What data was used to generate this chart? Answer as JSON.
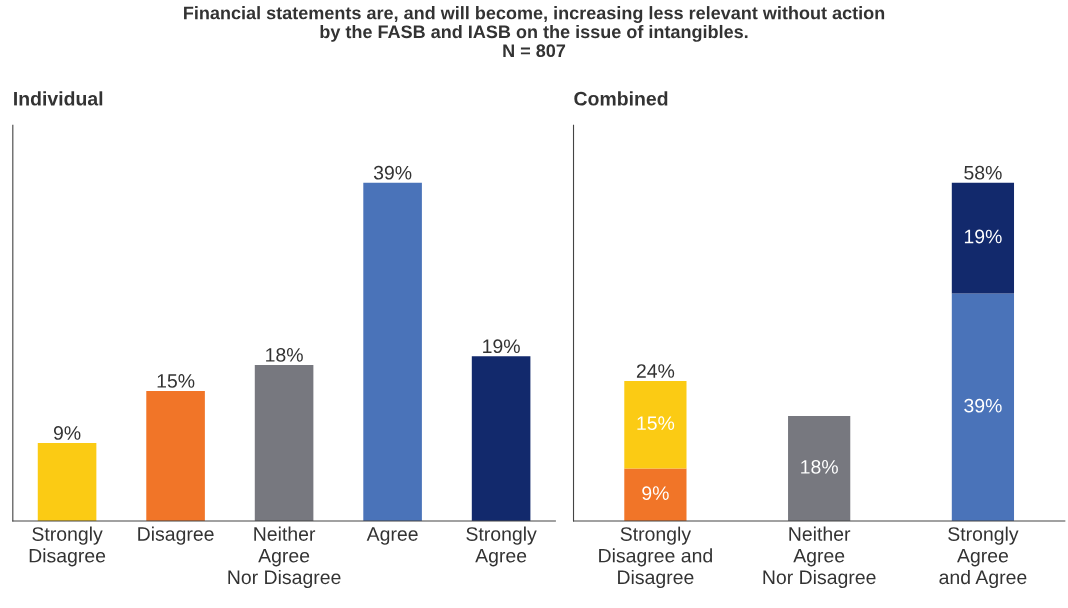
{
  "chart_data": [
    {
      "type": "bar",
      "title": "Individual",
      "annotations": [
        "Financial statements are, and will become, increasing less relevant without action\nby the FASB and IASB on the issue of intangibles.\nN = 807"
      ],
      "categories": [
        "Strongly\nDisagree",
        "Disagree",
        "Neither\nAgree\nNor Disagree",
        "Agree",
        "Strongly\nAgree"
      ],
      "values": [
        9,
        15,
        18,
        39,
        19
      ],
      "colors": [
        "#fbcb14",
        "#f17528",
        "#77787f",
        "#4a73b9",
        "#12296c"
      ],
      "value_labels": [
        "9%",
        "15%",
        "18%",
        "39%",
        "19%"
      ],
      "tick_labels": "x",
      "grid": false
    },
    {
      "type": "bar",
      "title": "Combined",
      "stacked": true,
      "categories": [
        "Strongly\nDisagree and\nDisagree",
        "Neither\nAgree\nNor Disagree",
        "Strongly\nAgree\nand Agree"
      ],
      "series": [
        {
          "color": "#f17528",
          "values": [
            9,
            null,
            null
          ],
          "value_labels": [
            "9%",
            null,
            null
          ]
        },
        {
          "color": "#fbcb14",
          "values": [
            15,
            null,
            null
          ],
          "value_labels": [
            "15%",
            null,
            null
          ]
        },
        {
          "color": "#77787f",
          "values": [
            null,
            18,
            null
          ],
          "value_labels": [
            null,
            "18%",
            null
          ]
        },
        {
          "color": "#4a73b9",
          "values": [
            null,
            null,
            39
          ],
          "value_labels": [
            null,
            null,
            "39%"
          ]
        },
        {
          "color": "#12296c",
          "values": [
            null,
            null,
            19
          ],
          "value_labels": [
            null,
            null,
            "19%"
          ]
        }
      ],
      "totals": [
        "24%",
        null,
        "58%"
      ],
      "tick_labels": "x",
      "grid": false
    }
  ]
}
